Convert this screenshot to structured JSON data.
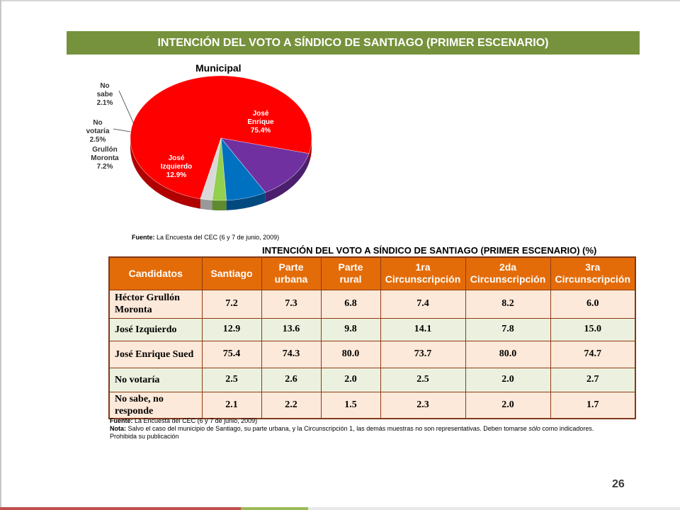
{
  "header": {
    "title": "INTENCIÓN DEL VOTO A SÍNDICO DE SANTIAGO (PRIMER ESCENARIO)"
  },
  "chart_data": {
    "type": "pie",
    "title": "Municipal",
    "slices": [
      {
        "label": "José Enrique",
        "value": 75.4,
        "display": "75.4%",
        "color": "#ff0000",
        "side": "#b00000"
      },
      {
        "label": "José Izquierdo",
        "value": 12.9,
        "display": "12.9%",
        "color": "#7030a0",
        "side": "#4b1f6e"
      },
      {
        "label": "Grullón Moronta",
        "value": 7.2,
        "display": "7.2%",
        "color": "#0070c0",
        "side": "#004a80"
      },
      {
        "label": "No votaría",
        "value": 2.5,
        "display": "2.5%",
        "color": "#92d050",
        "side": "#5f8a30"
      },
      {
        "label": "No sabe",
        "value": 2.1,
        "display": "2.1%",
        "color": "#d9d9d9",
        "side": "#999999"
      }
    ]
  },
  "source1": {
    "label": "Fuente:",
    "text": "La Encuesta del CEC (6 y 7 de junio, 2009)"
  },
  "table": {
    "title": "INTENCIÓN DEL VOTO A SÍNDICO DE SANTIAGO (PRIMER ESCENARIO) (%)",
    "headers": [
      "Candidatos",
      "Santiago",
      "Parte urbana",
      "Parte rural",
      "1ra Circunscripción",
      "2da Circunscripción",
      "3ra Circunscripción"
    ],
    "rows": [
      {
        "name": "Héctor Grullón Moronta",
        "values": [
          "7.2",
          "7.3",
          "6.8",
          "7.4",
          "8.2",
          "6.0"
        ]
      },
      {
        "name": "José Izquierdo",
        "values": [
          "12.9",
          "13.6",
          "9.8",
          "14.1",
          "7.8",
          "15.0"
        ]
      },
      {
        "name": "José Enrique Sued",
        "values": [
          "75.4",
          "74.3",
          "80.0",
          "73.7",
          "80.0",
          "74.7"
        ]
      },
      {
        "name": "No votaría",
        "values": [
          "2.5",
          "2.6",
          "2.0",
          "2.5",
          "2.0",
          "2.7"
        ]
      },
      {
        "name": "No sabe, no responde",
        "values": [
          "2.1",
          "2.2",
          "1.5",
          "2.3",
          "2.0",
          "1.7"
        ]
      }
    ]
  },
  "footer": {
    "source_label": "Fuente:",
    "source_text": "La Encuesta del CEC (6 y 7 de junio, 2009)",
    "note_label": "Nota:",
    "note_text_before": "Salvo el caso del municipio de Santiago, su parte urbana, y la Circunscripción 1, las demás muestras no son representativas. Deben tomarse",
    "note_emphasis": "sólo",
    "note_text_after": "como indicadores.",
    "prohibited": "Prohibida su publicación"
  },
  "page_number": "26"
}
